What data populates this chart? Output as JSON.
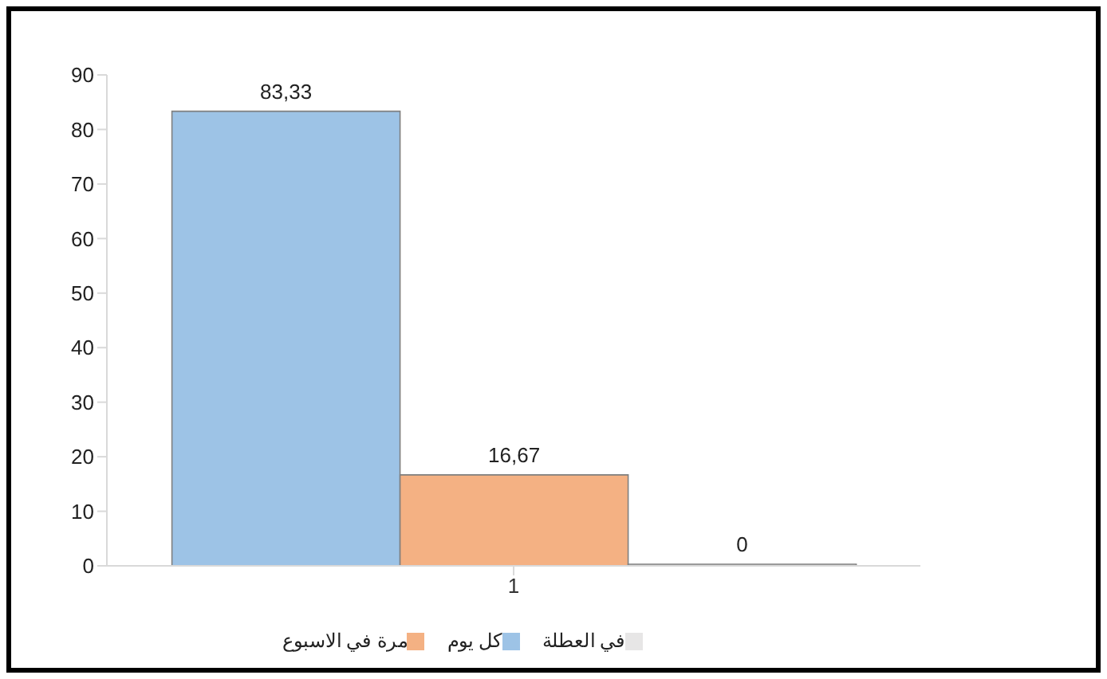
{
  "chart_data": {
    "type": "bar",
    "categories": [
      "1"
    ],
    "series": [
      {
        "name": "كل يوم",
        "color": "#9dc3e6",
        "values": [
          83.33
        ],
        "value_labels": [
          "83,33"
        ]
      },
      {
        "name": "مرة في الاسبوع",
        "color": "#f4b183",
        "values": [
          16.67
        ],
        "value_labels": [
          "16,67"
        ]
      },
      {
        "name": "في العطلة",
        "color": "#e7e6e6",
        "values": [
          0
        ],
        "value_labels": [
          "0"
        ]
      }
    ],
    "ylim": [
      0,
      90
    ],
    "yticks": [
      0,
      10,
      20,
      30,
      40,
      50,
      60,
      70,
      80,
      90
    ],
    "grid": false,
    "legend": "bottom"
  }
}
